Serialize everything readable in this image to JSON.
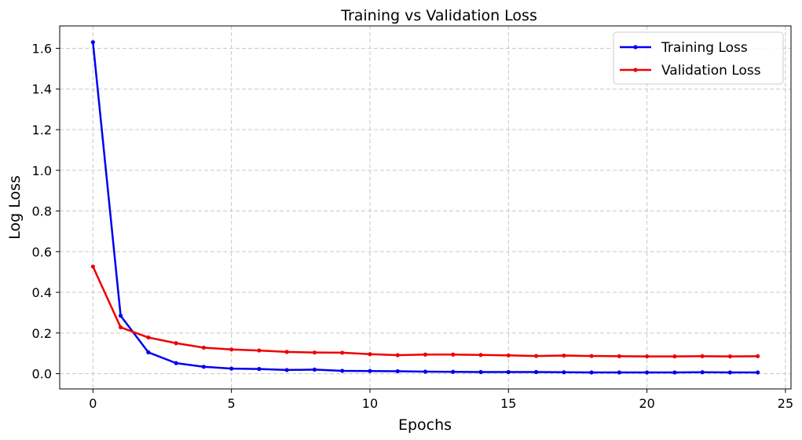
{
  "chart_data": {
    "type": "line",
    "title": "Training vs Validation Loss",
    "xlabel": "Epochs",
    "ylabel": "Log Loss",
    "xlim": [
      -1.2,
      25.2
    ],
    "ylim": [
      -0.075,
      1.71
    ],
    "xticks": [
      0,
      5,
      10,
      15,
      20,
      25
    ],
    "yticks": [
      0.0,
      0.2,
      0.4,
      0.6,
      0.8,
      1.0,
      1.2,
      1.4,
      1.6
    ],
    "grid": true,
    "legend_position": "upper-right",
    "x": [
      0,
      1,
      2,
      3,
      4,
      5,
      6,
      7,
      8,
      9,
      10,
      11,
      12,
      13,
      14,
      15,
      16,
      17,
      18,
      19,
      20,
      21,
      22,
      23,
      24
    ],
    "series": [
      {
        "name": "Training Loss",
        "color": "#0000ee",
        "values": [
          1.63,
          0.285,
          0.105,
          0.052,
          0.034,
          0.025,
          0.023,
          0.018,
          0.02,
          0.014,
          0.013,
          0.012,
          0.01,
          0.009,
          0.008,
          0.008,
          0.008,
          0.007,
          0.006,
          0.006,
          0.006,
          0.006,
          0.007,
          0.006,
          0.006
        ]
      },
      {
        "name": "Validation Loss",
        "color": "#ee0000",
        "values": [
          0.527,
          0.228,
          0.178,
          0.15,
          0.128,
          0.119,
          0.114,
          0.107,
          0.104,
          0.103,
          0.096,
          0.091,
          0.094,
          0.094,
          0.092,
          0.09,
          0.087,
          0.089,
          0.087,
          0.086,
          0.085,
          0.085,
          0.086,
          0.085,
          0.086
        ]
      }
    ]
  }
}
